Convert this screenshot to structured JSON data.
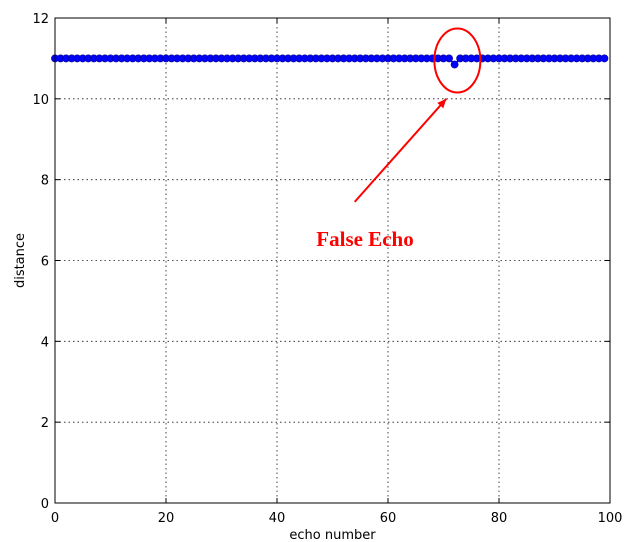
{
  "chart_data": {
    "type": "line",
    "title": "",
    "xlabel": "echo number",
    "ylabel": "distance",
    "xlim": [
      0,
      100
    ],
    "ylim": [
      0,
      12
    ],
    "grid": true,
    "x_ticks": [
      "0",
      "20",
      "40",
      "60",
      "80",
      "100"
    ],
    "y_ticks": [
      "0",
      "2",
      "4",
      "6",
      "8",
      "10",
      "12"
    ],
    "series": [
      {
        "marker": "circle",
        "color": "#0000ff",
        "x": [
          0,
          1,
          2,
          3,
          4,
          5,
          6,
          7,
          8,
          9,
          10,
          11,
          12,
          13,
          14,
          15,
          16,
          17,
          18,
          19,
          20,
          21,
          22,
          23,
          24,
          25,
          26,
          27,
          28,
          29,
          30,
          31,
          32,
          33,
          34,
          35,
          36,
          37,
          38,
          39,
          40,
          41,
          42,
          43,
          44,
          45,
          46,
          47,
          48,
          49,
          50,
          51,
          52,
          53,
          54,
          55,
          56,
          57,
          58,
          59,
          60,
          61,
          62,
          63,
          64,
          65,
          66,
          67,
          68,
          69,
          70,
          71,
          72,
          73,
          74,
          75,
          76,
          77,
          78,
          79,
          80,
          81,
          82,
          83,
          84,
          85,
          86,
          87,
          88,
          89,
          90,
          91,
          92,
          93,
          94,
          95,
          96,
          97,
          98,
          99
        ],
        "y": [
          11,
          11,
          11,
          11,
          11,
          11,
          11,
          11,
          11,
          11,
          11,
          11,
          11,
          11,
          11,
          11,
          11,
          11,
          11,
          11,
          11,
          11,
          11,
          11,
          11,
          11,
          11,
          11,
          11,
          11,
          11,
          11,
          11,
          11,
          11,
          11,
          11,
          11,
          11,
          11,
          11,
          11,
          11,
          11,
          11,
          11,
          11,
          11,
          11,
          11,
          11,
          11,
          11,
          11,
          11,
          11,
          11,
          11,
          11,
          11,
          11,
          11,
          11,
          11,
          11,
          11,
          11,
          11,
          11,
          11,
          11,
          11,
          10.85,
          11,
          11,
          11,
          11,
          11,
          11,
          11,
          11,
          11,
          11,
          11,
          11,
          11,
          11,
          11,
          11,
          11,
          11,
          11,
          11,
          11,
          11,
          11,
          11,
          11,
          11,
          11
        ]
      }
    ],
    "annotation": {
      "text": "False Echo",
      "color": "#ff0000",
      "ellipse_center": [
        72.5,
        10.85
      ],
      "arrow_from": [
        54,
        7.45
      ],
      "arrow_to": [
        70.5,
        10
      ]
    }
  }
}
